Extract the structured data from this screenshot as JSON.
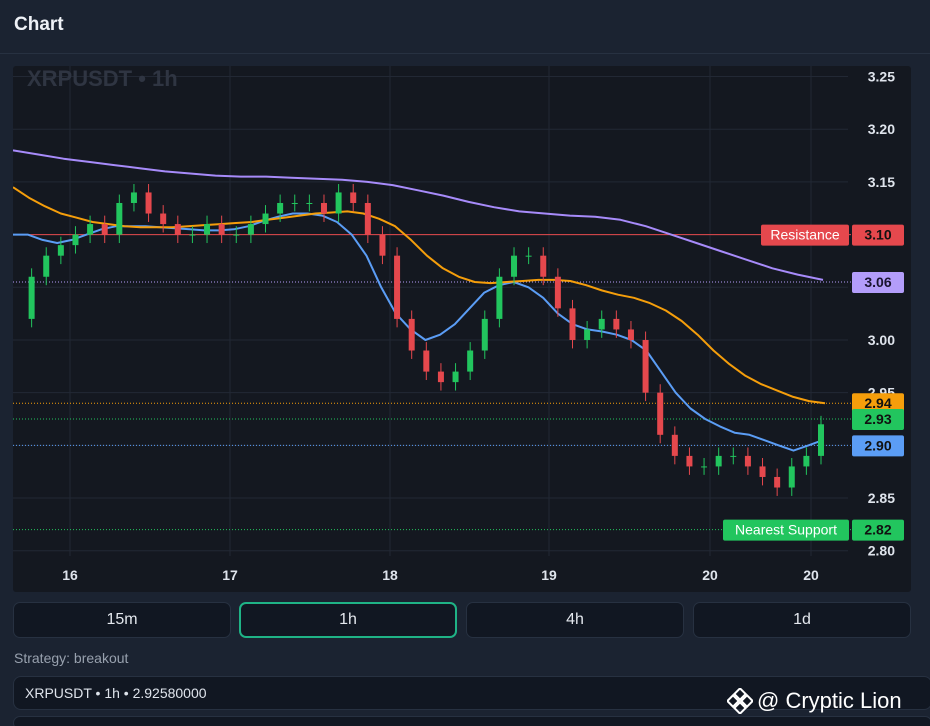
{
  "header": {
    "title": "Chart"
  },
  "chart_data": {
    "type": "candlestick",
    "title": "XRPUSDT • 1h",
    "x_ticks": [
      "16",
      "17",
      "18",
      "19",
      "20",
      "20"
    ],
    "y_ticks": [
      "3.25",
      "3.20",
      "3.15",
      "3.10",
      "3.05",
      "3.00",
      "2.95",
      "2.90",
      "2.85",
      "2.80"
    ],
    "ylim": [
      2.795,
      3.26
    ],
    "grid": true,
    "levels": [
      {
        "name": "Resistance",
        "value_label": "3.10",
        "value": 3.1,
        "color": "#e5484d",
        "line": "solid"
      },
      {
        "name": "",
        "value_label": "3.06",
        "value": 3.055,
        "color": "#b39dfa",
        "line": "dotted"
      },
      {
        "name": "",
        "value_label": "2.94",
        "value": 2.94,
        "color": "#f59e0b",
        "line": "dotted"
      },
      {
        "name": "",
        "value_label": "2.93",
        "value": 2.925,
        "color": "#22c55e",
        "line": "dotted"
      },
      {
        "name": "",
        "value_label": "2.90",
        "value": 2.9,
        "color": "#5b9df5",
        "line": "dotted"
      },
      {
        "name": "Nearest Support",
        "value_label": "2.82",
        "value": 2.82,
        "color": "#22c55e",
        "line": "dotted"
      }
    ],
    "series": [
      {
        "name": "",
        "color": "#5b9df5",
        "points": [
          3.1,
          3.1,
          3.095,
          3.092,
          3.095,
          3.1,
          3.105,
          3.108,
          3.108,
          3.108,
          3.107,
          3.106,
          3.105,
          3.104,
          3.104,
          3.105,
          3.108,
          3.113,
          3.117,
          3.12,
          3.12,
          3.118,
          3.112,
          3.1,
          3.08,
          3.05,
          3.025,
          3.01,
          3.0,
          3.005,
          3.015,
          3.03,
          3.045,
          3.052,
          3.055,
          3.05,
          3.04,
          3.025,
          3.015,
          3.01,
          3.008,
          3.005,
          3.0,
          2.99,
          2.97,
          2.95,
          2.935,
          2.925,
          2.918,
          2.912,
          2.91,
          2.905,
          2.9,
          2.895,
          2.9,
          2.905
        ]
      },
      {
        "name": "",
        "color": "#f59e0b",
        "points": [
          3.145,
          3.135,
          3.127,
          3.12,
          3.116,
          3.112,
          3.11,
          3.108,
          3.107,
          3.107,
          3.107,
          3.108,
          3.109,
          3.11,
          3.111,
          3.112,
          3.114,
          3.116,
          3.118,
          3.12,
          3.121,
          3.122,
          3.12,
          3.115,
          3.108,
          3.095,
          3.08,
          3.068,
          3.06,
          3.055,
          3.054,
          3.055,
          3.056,
          3.057,
          3.057,
          3.056,
          3.052,
          3.047,
          3.043,
          3.04,
          3.035,
          3.028,
          3.018,
          3.005,
          2.99,
          2.977,
          2.966,
          2.958,
          2.952,
          2.946,
          2.942,
          2.94
        ]
      },
      {
        "name": "",
        "color": "#a78bfa",
        "points": [
          3.18,
          3.176,
          3.172,
          3.169,
          3.166,
          3.163,
          3.16,
          3.158,
          3.156,
          3.155,
          3.155,
          3.154,
          3.153,
          3.152,
          3.15,
          3.147,
          3.142,
          3.137,
          3.131,
          3.126,
          3.122,
          3.12,
          3.118,
          3.117,
          3.114,
          3.108,
          3.1,
          3.092,
          3.084,
          3.076,
          3.068,
          3.062,
          3.057
        ]
      }
    ]
  },
  "timeframes": [
    {
      "label": "15m",
      "active": false
    },
    {
      "label": "1h",
      "active": true
    },
    {
      "label": "4h",
      "active": false
    },
    {
      "label": "1d",
      "active": false
    }
  ],
  "strategy_label": "Strategy: breakout",
  "info_bar": {
    "text": "XRPUSDT • 1h • 2.92580000"
  },
  "watermark": {
    "text": "@ Cryptic Lion",
    "icon": "binance-diamond-icon"
  }
}
